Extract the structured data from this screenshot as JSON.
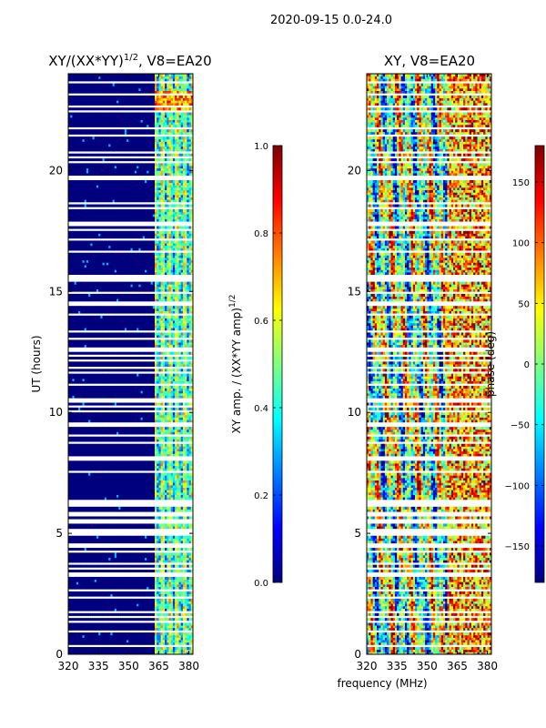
{
  "figure_title": "2020-09-15 0.0-24.0",
  "shared_xlabel": "frequency (MHz)",
  "colormap": [
    "#00007f",
    "#0000ff",
    "#007fff",
    "#00ffff",
    "#7fff7f",
    "#ffff00",
    "#ff7f00",
    "#ff0000",
    "#7f0000"
  ],
  "chart_data": [
    {
      "type": "heatmap",
      "title": "XY/(XX*YY)",
      "title_exponent": "1/2",
      "title_suffix": ", V8=EA20",
      "xlabel": "",
      "ylabel": "UT (hours)",
      "xlim": [
        320,
        382
      ],
      "ylim": [
        0,
        24
      ],
      "xticks": [
        320,
        335,
        350,
        365,
        380
      ],
      "yticks": [
        0,
        5,
        10,
        15,
        20
      ],
      "colorbar": {
        "label": "XY amp. / (XX*YY amp)",
        "label_exponent": "1/2",
        "range": [
          0.0,
          1.0
        ],
        "ticks": [
          "0.0",
          "0.2",
          "0.4",
          "0.6",
          "0.8",
          "1.0"
        ]
      },
      "band_start_mhz": 363.5,
      "low_band_value": 0.0,
      "flagged_hours": [
        0.35,
        0.9,
        1.4,
        1.55,
        1.75,
        2.4,
        2.6,
        3.2,
        3.4,
        3.55,
        3.75,
        4.25,
        4.45,
        4.6,
        5.0,
        5.15,
        5.4,
        5.5,
        5.75,
        5.85,
        6.2,
        6.3,
        7.55,
        8.05,
        8.2,
        8.5,
        8.75,
        9.1,
        9.45,
        9.6,
        10.1,
        10.25,
        10.4,
        10.6,
        11.2,
        11.7,
        11.8,
        12.2,
        12.35,
        12.6,
        12.7,
        13.1,
        13.3,
        14.05,
        14.4,
        14.6,
        14.9,
        15.4,
        15.55,
        15.7,
        16.2,
        16.5,
        16.65,
        16.8,
        17.15,
        17.3,
        17.55,
        17.75,
        17.85,
        18.45,
        18.6,
        19.6,
        19.75,
        20.0,
        20.35,
        20.55,
        20.75,
        21.2,
        21.45,
        21.75,
        22.0,
        22.3,
        22.45,
        22.65,
        23.15,
        23.5,
        23.6,
        23.8
      ]
    },
    {
      "type": "heatmap",
      "title": "XY, V8=EA20",
      "xlabel": "",
      "ylabel": "",
      "xlim": [
        320,
        382
      ],
      "ylim": [
        0,
        24
      ],
      "xticks": [
        320,
        335,
        350,
        365,
        380
      ],
      "yticks": [
        0,
        5,
        10,
        15,
        20
      ],
      "colorbar": {
        "label": "phase (deg)",
        "range": [
          -180,
          180
        ],
        "ticks": [
          "−150",
          "−100",
          "−50",
          "0",
          "50",
          "100",
          "150"
        ]
      },
      "flagged_hours": [
        0.35,
        0.9,
        1.4,
        1.55,
        1.75,
        2.4,
        2.6,
        3.2,
        3.4,
        3.55,
        3.75,
        4.25,
        4.45,
        4.6,
        5.0,
        5.15,
        5.4,
        5.5,
        5.75,
        5.85,
        6.2,
        6.3,
        7.55,
        8.05,
        8.2,
        8.5,
        8.75,
        9.1,
        9.45,
        9.6,
        10.1,
        10.25,
        10.4,
        10.6,
        11.2,
        11.7,
        11.8,
        12.2,
        12.35,
        12.6,
        12.7,
        13.1,
        13.3,
        14.05,
        14.4,
        14.6,
        14.9,
        15.4,
        15.55,
        15.7,
        16.2,
        16.5,
        16.65,
        16.8,
        17.15,
        17.3,
        17.55,
        17.75,
        17.85,
        18.45,
        18.6,
        19.6,
        19.75,
        20.0,
        20.35,
        20.55,
        20.75,
        21.2,
        21.45,
        21.75,
        22.0,
        22.3,
        22.45,
        22.65,
        23.15,
        23.5,
        23.6,
        23.8
      ]
    }
  ]
}
